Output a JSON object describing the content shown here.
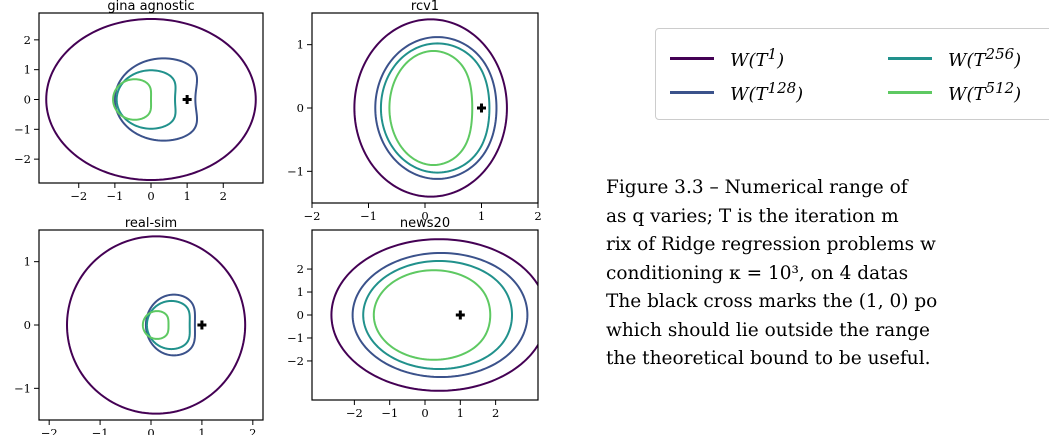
{
  "chart_data": [
    {
      "type": "line",
      "title": "gina agnostic",
      "xlim": [
        -3.1,
        3.1
      ],
      "ylim": [
        -2.8,
        2.9
      ],
      "xticks": [
        -2,
        -1,
        0,
        1,
        2
      ],
      "xtick_labels": [
        "−2",
        "−1",
        "0",
        "1",
        "2"
      ],
      "yticks": [
        -2,
        -1,
        0,
        1,
        2
      ],
      "ytick_labels": [
        "−2",
        "−1",
        "0",
        "1",
        "2"
      ],
      "series": [
        {
          "name": "W(T^1)",
          "center": [
            0,
            0
          ],
          "rx": 2.9,
          "ry": 2.7,
          "dent": 0.0
        },
        {
          "name": "W(T^128)",
          "center": [
            0.35,
            0
          ],
          "rx": 1.35,
          "ry": 1.38,
          "dent": 0.35
        },
        {
          "name": "W(T^256)",
          "center": [
            0.0,
            0
          ],
          "rx": 0.95,
          "ry": 0.98,
          "dent": 0.3
        },
        {
          "name": "W(T^512)",
          "center": [
            -0.45,
            0
          ],
          "rx": 0.6,
          "ry": 0.68,
          "dent": 0.25
        }
      ],
      "marker": {
        "label": "cross",
        "x": 1,
        "y": 0
      }
    },
    {
      "type": "line",
      "title": "rcv1",
      "xlim": [
        -2,
        2
      ],
      "ylim": [
        -1.5,
        1.5
      ],
      "xticks": [
        -2,
        -1,
        0,
        1,
        2
      ],
      "xtick_labels": [
        "−2",
        "−1",
        "0",
        "1",
        "2"
      ],
      "yticks": [
        -1,
        0,
        1
      ],
      "ytick_labels": [
        "−1",
        "0",
        "1"
      ],
      "series": [
        {
          "name": "W(T^1)",
          "center": [
            0.1,
            0
          ],
          "rx": 1.35,
          "ry": 1.4,
          "dent": 0.0
        },
        {
          "name": "W(T^128)",
          "center": [
            0.22,
            0
          ],
          "rx": 1.1,
          "ry": 1.12,
          "dent": 0.05
        },
        {
          "name": "W(T^256)",
          "center": [
            0.22,
            0
          ],
          "rx": 1.0,
          "ry": 1.02,
          "dent": 0.08
        },
        {
          "name": "W(T^512)",
          "center": [
            0.15,
            0
          ],
          "rx": 0.78,
          "ry": 0.9,
          "dent": 0.12
        }
      ],
      "marker": {
        "label": "cross",
        "x": 1,
        "y": 0
      }
    },
    {
      "type": "line",
      "title": "real-sim",
      "xlim": [
        -2.2,
        2.2
      ],
      "ylim": [
        -1.5,
        1.5
      ],
      "xticks": [
        -2,
        -1,
        0,
        1,
        2
      ],
      "xtick_labels": [
        "−2",
        "−1",
        "0",
        "1",
        "2"
      ],
      "yticks": [
        -1,
        0,
        1
      ],
      "ytick_labels": [
        "−1",
        "0",
        "1"
      ],
      "series": [
        {
          "name": "W(T^1)",
          "center": [
            0.1,
            0
          ],
          "rx": 1.75,
          "ry": 1.4,
          "dent": 0.0
        },
        {
          "name": "W(T^128)",
          "center": [
            0.45,
            0
          ],
          "rx": 0.55,
          "ry": 0.48,
          "dent": 0.25
        },
        {
          "name": "W(T^256)",
          "center": [
            0.4,
            0
          ],
          "rx": 0.48,
          "ry": 0.38,
          "dent": 0.25
        },
        {
          "name": "W(T^512)",
          "center": [
            0.12,
            0
          ],
          "rx": 0.28,
          "ry": 0.22,
          "dent": 0.2
        }
      ],
      "marker": {
        "label": "cross",
        "x": 1,
        "y": 0
      }
    },
    {
      "type": "line",
      "title": "news20",
      "xlim": [
        -3.2,
        3.2
      ],
      "ylim": [
        -3.7,
        3.7
      ],
      "xticks": [
        -2,
        -1,
        0,
        1,
        2
      ],
      "xtick_labels": [
        "−2",
        "−1",
        "0",
        "1",
        "2"
      ],
      "yticks": [
        -2,
        -1,
        0,
        1,
        2
      ],
      "ytick_labels": [
        "−2",
        "−1",
        "0",
        "1",
        "2"
      ],
      "series": [
        {
          "name": "W(T^1)",
          "center": [
            0.4,
            0
          ],
          "rx": 3.05,
          "ry": 3.3,
          "dent": 0.0
        },
        {
          "name": "W(T^128)",
          "center": [
            0.45,
            0
          ],
          "rx": 2.5,
          "ry": 2.7,
          "dent": 0.02
        },
        {
          "name": "W(T^256)",
          "center": [
            0.4,
            0
          ],
          "rx": 2.15,
          "ry": 2.35,
          "dent": 0.04
        },
        {
          "name": "W(T^512)",
          "center": [
            0.25,
            0
          ],
          "rx": 1.7,
          "ry": 1.95,
          "dent": 0.06
        }
      ],
      "marker": {
        "label": "cross",
        "x": 1,
        "y": 0
      }
    }
  ],
  "colors": {
    "W(T^1)": "#440154",
    "W(T^128)": "#3b528b",
    "W(T^256)": "#21918c",
    "W(T^512)": "#5ec962",
    "cross": "#000000",
    "frame": "#000000"
  },
  "legend": {
    "placement": "top-right",
    "items": [
      {
        "series": "W(T^1)",
        "base": "W(T",
        "sup": "1",
        "close": ")"
      },
      {
        "series": "W(T^256)",
        "base": "W(T",
        "sup": "256",
        "close": ")"
      },
      {
        "series": "W(T^128)",
        "base": "W(T",
        "sup": "128",
        "close": ")"
      },
      {
        "series": "W(T^512)",
        "base": "W(T",
        "sup": "512",
        "close": ")"
      }
    ]
  },
  "caption": {
    "lines": [
      "Figure 3.3 – Numerical range of",
      "as q varies; T is the iteration m",
      "rix of Ridge regression problems w",
      "conditioning κ = 10³, on 4 datas",
      "The black cross marks the (1, 0) po",
      "which should lie outside the range",
      "the theoretical bound to be useful."
    ]
  }
}
